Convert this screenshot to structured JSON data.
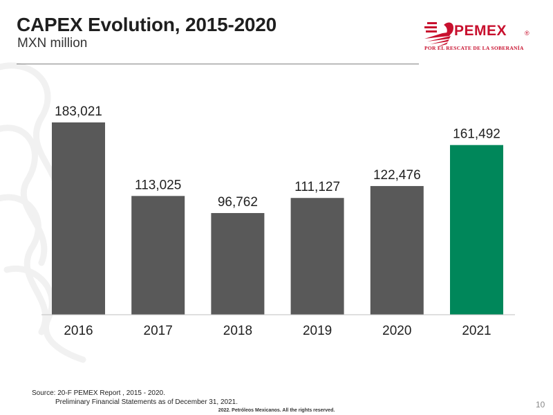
{
  "header": {
    "title": "CAPEX Evolution, 2015-2020",
    "subtitle": "MXN million"
  },
  "logo": {
    "name": "PEMEX",
    "registered": "®",
    "tagline": "POR EL RESCATE DE LA SOBERANÍA",
    "color": "#c8102e"
  },
  "chart_data": {
    "type": "bar",
    "title": "CAPEX Evolution, 2015-2020",
    "ylabel": "MXN million",
    "xlabel": "",
    "categories": [
      "2016",
      "2017",
      "2018",
      "2019",
      "2020",
      "2021"
    ],
    "values": [
      183021,
      113025,
      96762,
      111127,
      122476,
      161492
    ],
    "value_labels": [
      "183,021",
      "113,025",
      "96,762",
      "111,127",
      "122,476",
      "161,492"
    ],
    "bar_colors": [
      "#595959",
      "#595959",
      "#595959",
      "#595959",
      "#595959",
      "#00875a"
    ],
    "ylim": [
      0,
      183021
    ],
    "grid": false,
    "legend": "none"
  },
  "footer": {
    "source_line1": "Source: 20-F PEMEX Report , 2015 - 2020.",
    "source_line2": "Preliminary Financial Statements as of December 31, 2021.",
    "page_number": "10",
    "copyright": "2022. Petróleos Mexicanos. All the rights reserved."
  }
}
